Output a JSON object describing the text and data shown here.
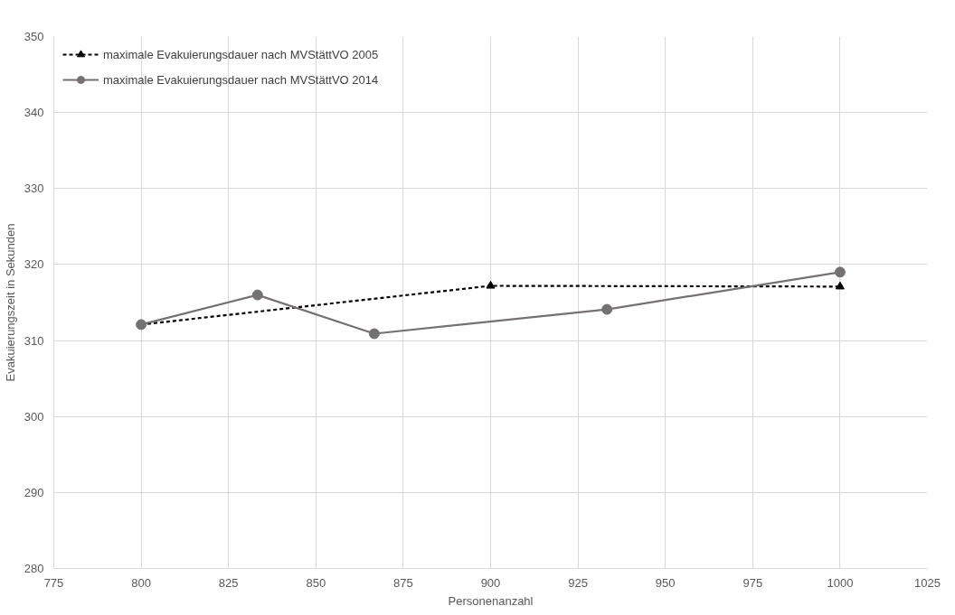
{
  "chart_data": {
    "type": "line",
    "xlabel": "Personenanzahl",
    "ylabel": "Evakuierungszeit in Sekunden",
    "xlim": [
      775,
      1025
    ],
    "xticks": [
      775,
      800,
      825,
      850,
      875,
      900,
      925,
      950,
      975,
      1000,
      1025
    ],
    "ylim": [
      280,
      350
    ],
    "yticks": [
      280,
      290,
      300,
      310,
      320,
      330,
      340,
      350
    ],
    "grid": true,
    "legend": "top left",
    "series": [
      {
        "name": "maximale Evakuierungsdauer nach MVStättVO 2005",
        "color": "#000000",
        "marker": "triangle",
        "line_style": "dashed",
        "x": [
          800,
          900,
          1000
        ],
        "values": [
          312.1,
          317.2,
          317.1
        ]
      },
      {
        "name": "maximale Evakuierungsdauer nach MVStättVO 2014",
        "color": "#767171",
        "marker": "circle",
        "line_style": "solid",
        "x": [
          800,
          833.3,
          866.7,
          933.3,
          1000
        ],
        "values": [
          312.1,
          316.0,
          310.9,
          314.1,
          319.0
        ]
      }
    ]
  }
}
